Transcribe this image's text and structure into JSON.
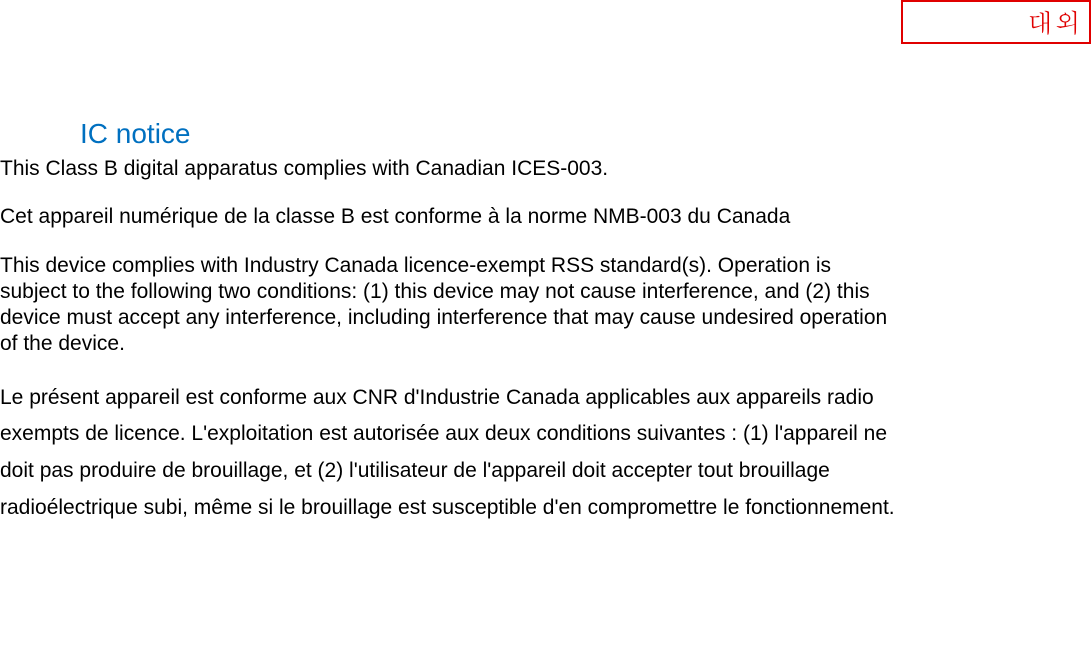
{
  "stamp": {
    "text": "대외",
    "border_color": "#e00000",
    "text_color": "#e00000"
  },
  "document": {
    "title": "IC notice",
    "title_color": "#0070c0",
    "title_fontsize": 28,
    "body_fontsize": 21,
    "body_color": "#000000",
    "paragraphs": [
      "This Class B digital apparatus complies with Canadian ICES-003.",
      "Cet appareil numérique de la classe B est conforme à la norme NMB-003 du Canada",
      "This device complies with Industry Canada licence-exempt RSS standard(s). Operation is subject to the following two conditions: (1) this device may not cause interference, and (2) this device must accept any interference, including interference that may cause undesired operation of the device.",
      "Le présent appareil est conforme aux CNR d'Industrie Canada applicables aux appareils radio exempts de licence. L'exploitation est autorisée aux deux conditions suivantes : (1) l'appareil ne doit pas produire de brouillage, et (2) l'utilisateur de l'appareil doit accepter tout brouillage radioélectrique subi, même si le brouillage est susceptible d'en compromettre le fonctionnement."
    ]
  }
}
